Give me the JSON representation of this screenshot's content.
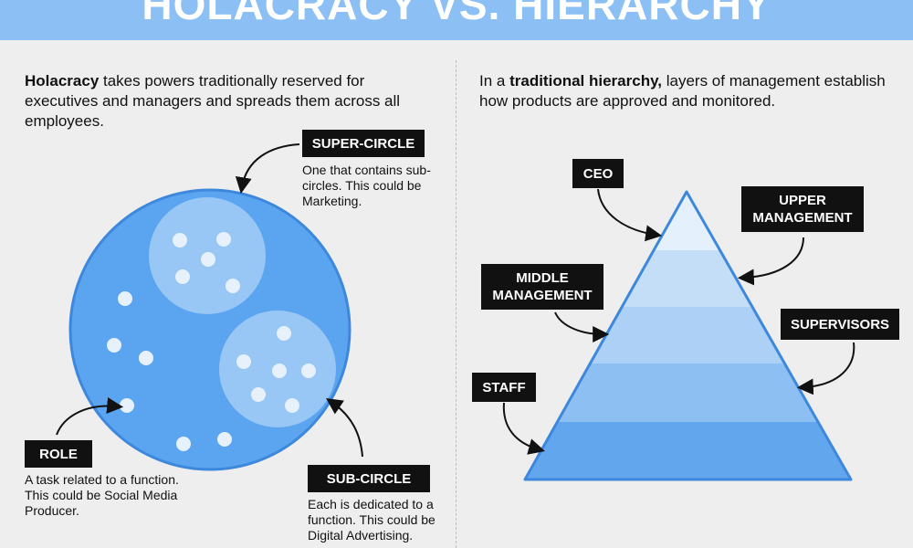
{
  "title": "HOLACRACY VS. HIERARCHY",
  "left": {
    "intro_bold": "Holacracy",
    "intro_rest": " takes powers traditionally reserved for executives and managers and spreads them across all employees.",
    "super_circle": {
      "label": "SUPER-CIRCLE",
      "description": "One that contains sub-circles. This could be Marketing."
    },
    "sub_circle": {
      "label": "SUB-CIRCLE",
      "description": "Each is dedicated to a function. This could be Digital Advertising."
    },
    "role": {
      "label": "ROLE",
      "description": "A task related to a function. This could be Social Media Producer."
    }
  },
  "right": {
    "intro_pre": "In a ",
    "intro_bold": "traditional hierarchy,",
    "intro_rest": " layers of management establish how products are approved and monitored.",
    "levels": {
      "ceo": "CEO",
      "upper_management": "UPPER MANAGEMENT",
      "middle_management": "MIDDLE MANAGEMENT",
      "supervisors": "SUPERVISORS",
      "staff": "STAFF"
    }
  },
  "colors": {
    "banner": "#8cc0f5",
    "circle_main": "#5aa4f0",
    "circle_edge": "#3d88dc",
    "sub_circle": "#9fcaf5",
    "dot": "#e6f1fc",
    "pyramid_1": "#e4f0fc",
    "pyramid_2": "#c4def8",
    "pyramid_3": "#acd0f6",
    "pyramid_4": "#8ebff3",
    "pyramid_5": "#62a7ee",
    "tag_bg": "#111111"
  }
}
